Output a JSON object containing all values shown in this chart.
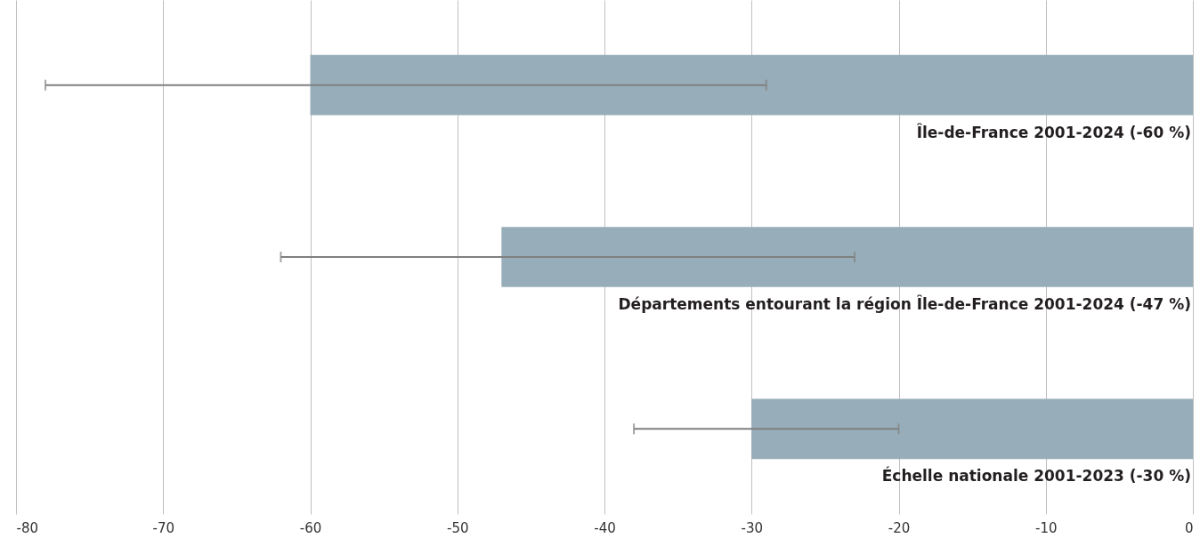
{
  "chart_data": {
    "type": "bar",
    "orientation": "horizontal",
    "categories": [
      "Île-de-France 2001-2024 (-60 %)",
      "Départements entourant la région Île-de-France 2001-2024 (-47 %)",
      "Échelle nationale 2001-2023 (-30 %)"
    ],
    "values": [
      -60,
      -47,
      -30
    ],
    "errors": [
      [
        -78,
        -29
      ],
      [
        -62,
        -23
      ],
      [
        -38,
        -20
      ]
    ],
    "color": "#97adb9",
    "xlim": [
      -80,
      0
    ],
    "xticks": [
      -80,
      -70,
      -60,
      -50,
      -40,
      -30,
      -20,
      -10,
      0
    ],
    "grid": "x"
  }
}
